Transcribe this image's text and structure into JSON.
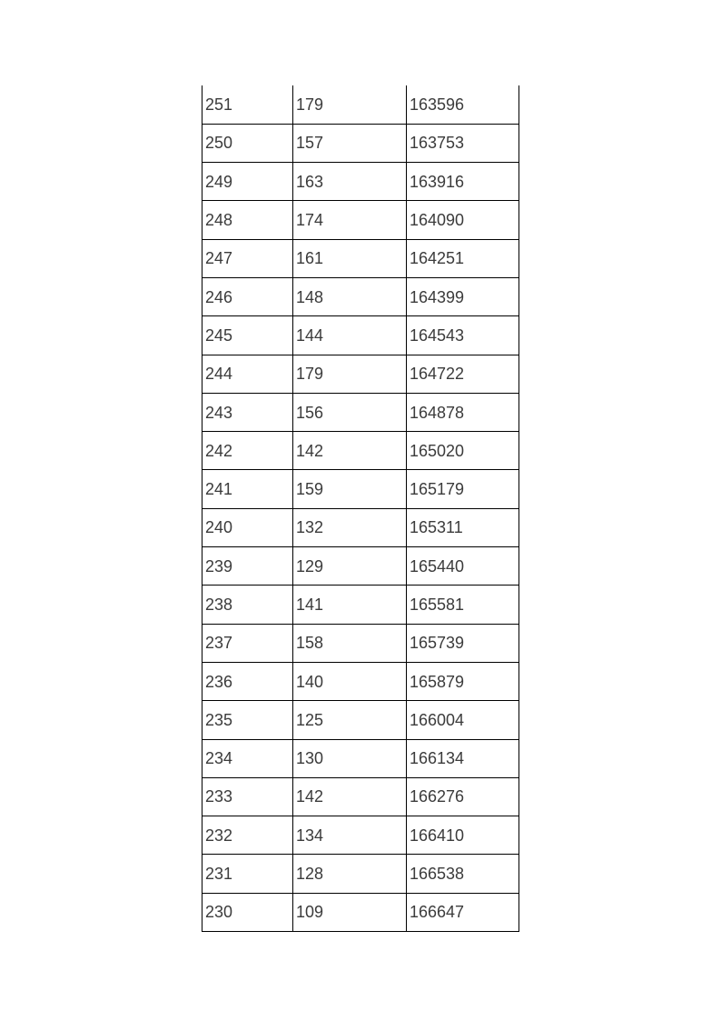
{
  "page": {
    "background": "#ffffff"
  },
  "table": {
    "border_color": "#000000",
    "text_color": "#3b3b3b",
    "rows": [
      {
        "score": "251",
        "count": "179",
        "cumulative": "163596"
      },
      {
        "score": "250",
        "count": "157",
        "cumulative": "163753"
      },
      {
        "score": "249",
        "count": "163",
        "cumulative": "163916"
      },
      {
        "score": "248",
        "count": "174",
        "cumulative": "164090"
      },
      {
        "score": "247",
        "count": "161",
        "cumulative": "164251"
      },
      {
        "score": "246",
        "count": "148",
        "cumulative": "164399"
      },
      {
        "score": "245",
        "count": "144",
        "cumulative": "164543"
      },
      {
        "score": "244",
        "count": "179",
        "cumulative": "164722"
      },
      {
        "score": "243",
        "count": "156",
        "cumulative": "164878"
      },
      {
        "score": "242",
        "count": "142",
        "cumulative": "165020"
      },
      {
        "score": "241",
        "count": "159",
        "cumulative": "165179"
      },
      {
        "score": "240",
        "count": "132",
        "cumulative": "165311"
      },
      {
        "score": "239",
        "count": "129",
        "cumulative": "165440"
      },
      {
        "score": "238",
        "count": "141",
        "cumulative": "165581"
      },
      {
        "score": "237",
        "count": "158",
        "cumulative": "165739"
      },
      {
        "score": "236",
        "count": "140",
        "cumulative": "165879"
      },
      {
        "score": "235",
        "count": "125",
        "cumulative": "166004"
      },
      {
        "score": "234",
        "count": "130",
        "cumulative": "166134"
      },
      {
        "score": "233",
        "count": "142",
        "cumulative": "166276"
      },
      {
        "score": "232",
        "count": "134",
        "cumulative": "166410"
      },
      {
        "score": "231",
        "count": "128",
        "cumulative": "166538"
      },
      {
        "score": "230",
        "count": "109",
        "cumulative": "166647"
      }
    ]
  }
}
